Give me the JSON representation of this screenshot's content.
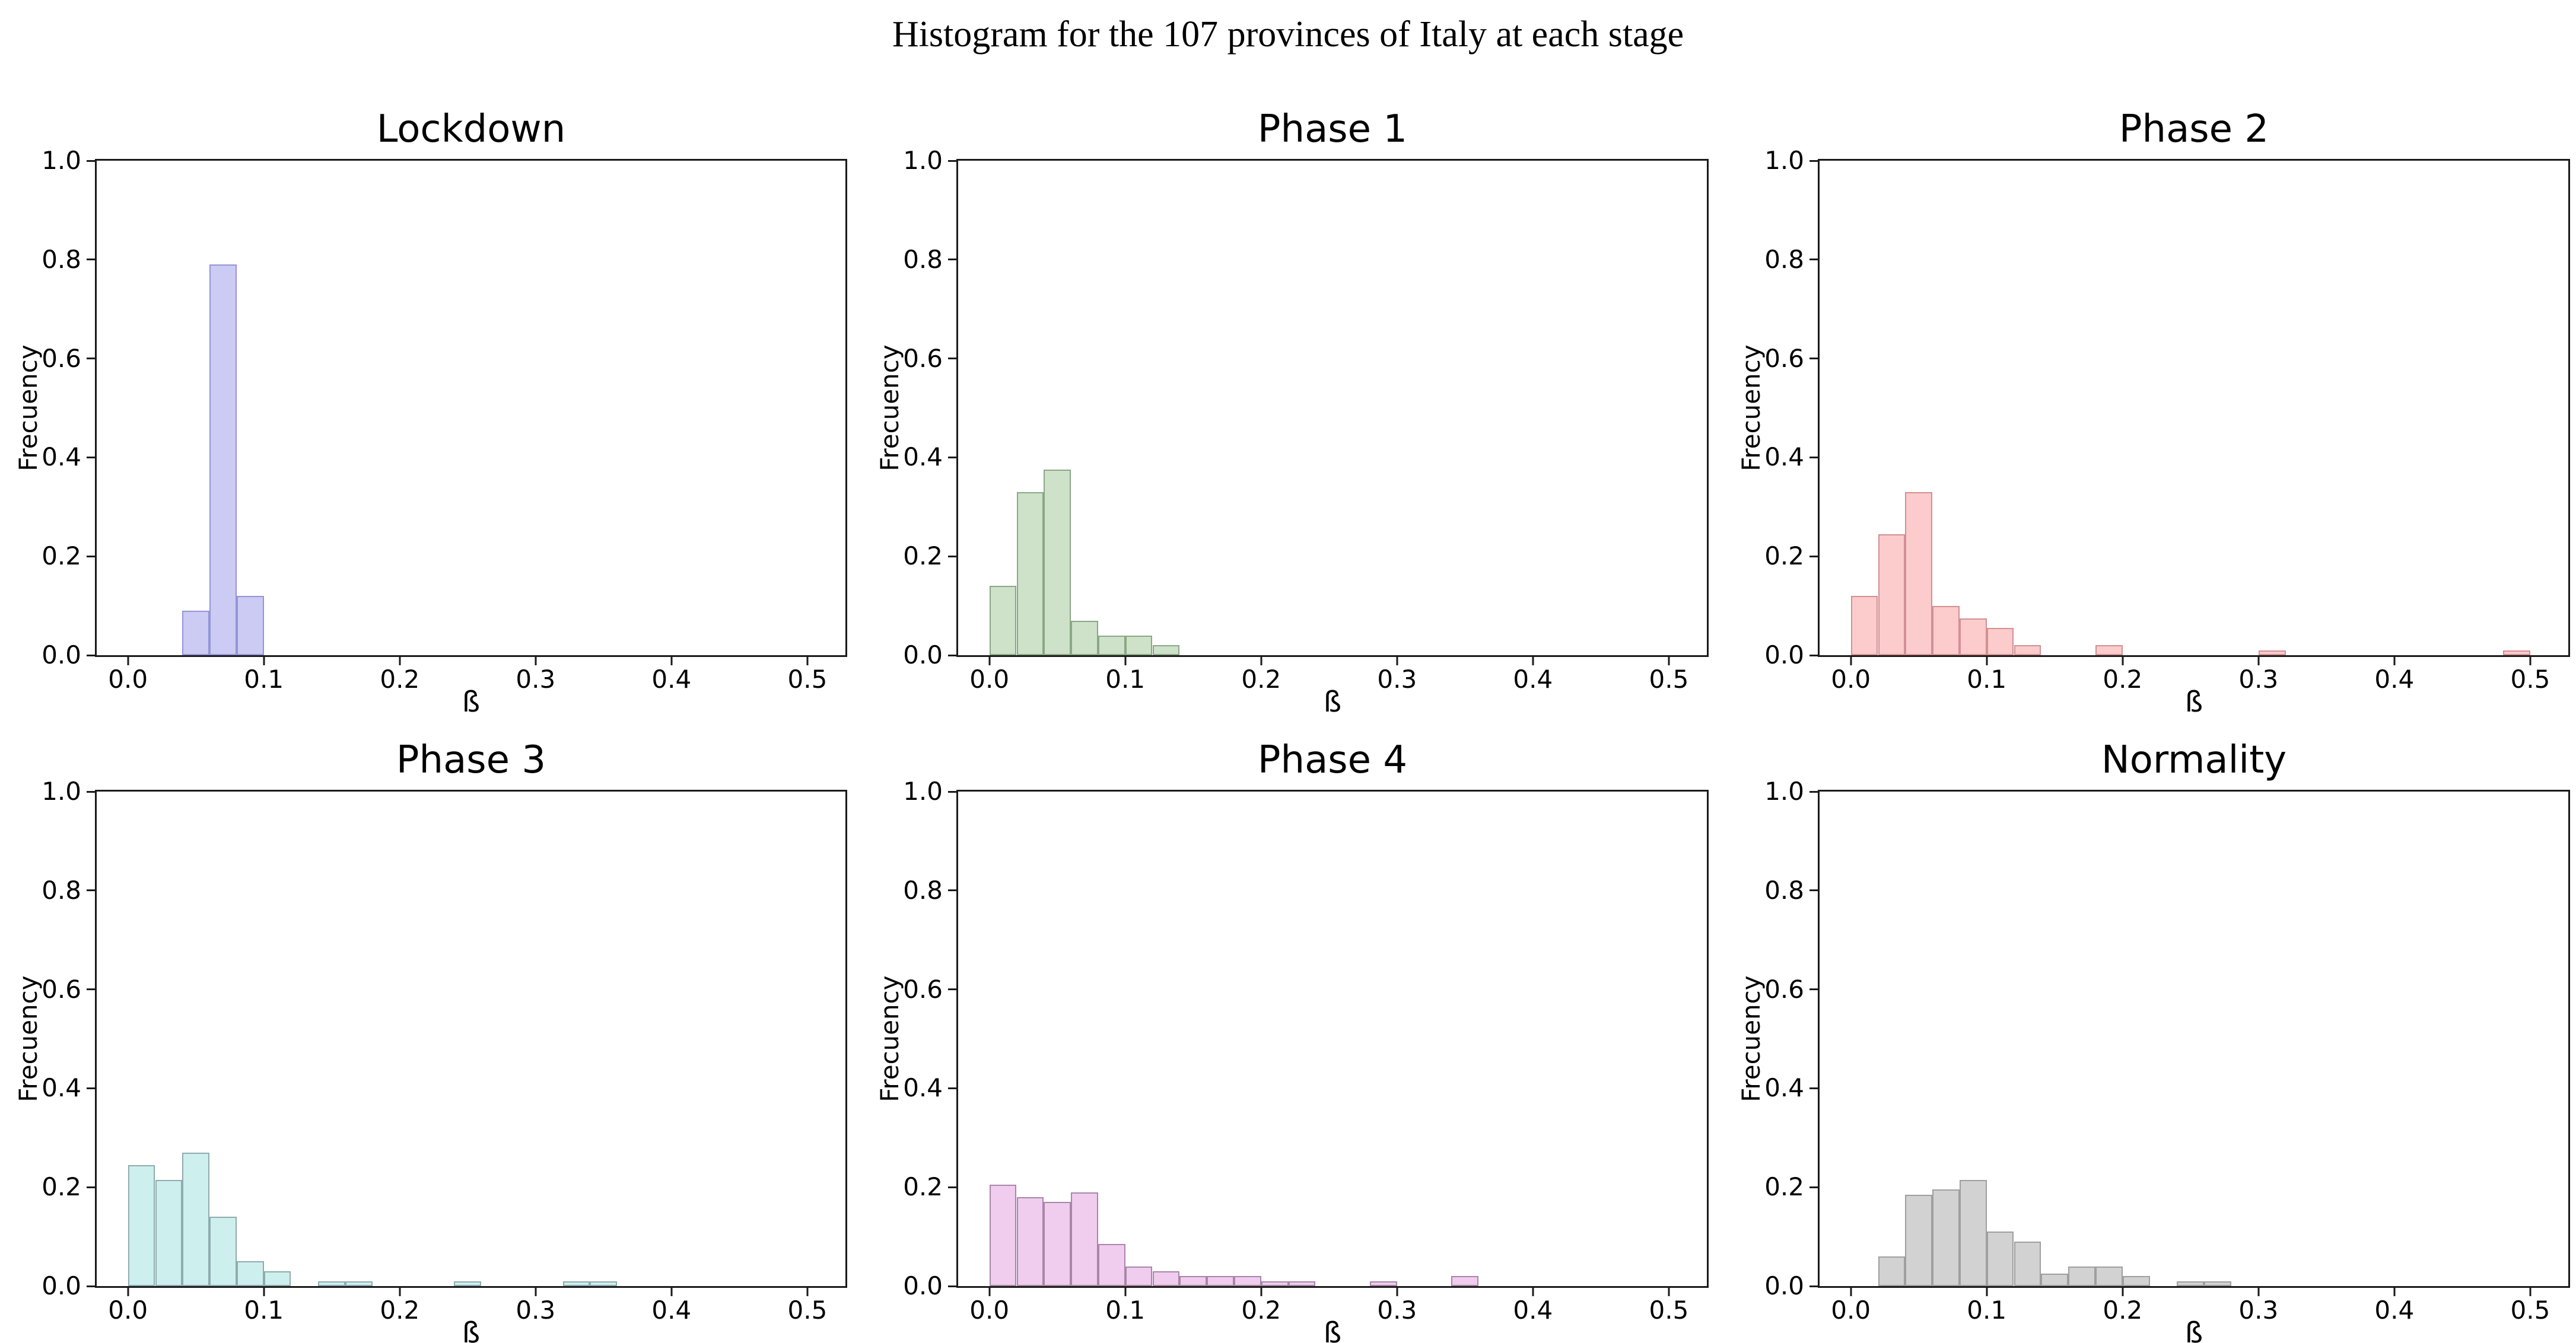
{
  "chart_data": {
    "type": "bar",
    "subtype": "histogram-grid",
    "figure_title": "Histogram for the 107 provinces of Italy at each stage",
    "xlabel": "ß",
    "ylabel": "Frecuency",
    "xlim": [
      -0.023,
      0.528
    ],
    "ylim": [
      0,
      1.0
    ],
    "x_tick_values": [
      0.0,
      0.1,
      0.2,
      0.3,
      0.4,
      0.5
    ],
    "x_tick_labels": [
      "0.0",
      "0.1",
      "0.2",
      "0.3",
      "0.4",
      "0.5"
    ],
    "y_tick_values": [
      0.0,
      0.2,
      0.4,
      0.6,
      0.8,
      1.0
    ],
    "y_tick_labels": [
      "0.0",
      "0.2",
      "0.4",
      "0.6",
      "0.8",
      "1.0"
    ],
    "bin_width": 0.02,
    "grid": "off",
    "legend": "none",
    "panels": [
      {
        "title": "Lockdown",
        "slug": "lockdown",
        "fill": "#cbcbf3",
        "edge": "#9494d8",
        "bars": [
          [
            0.04,
            0.09
          ],
          [
            0.06,
            0.79
          ],
          [
            0.08,
            0.12
          ]
        ]
      },
      {
        "title": "Phase 1",
        "slug": "phase-1",
        "fill": "#cde2c8",
        "edge": "#8aa786",
        "bars": [
          [
            0.0,
            0.14
          ],
          [
            0.02,
            0.33
          ],
          [
            0.04,
            0.375
          ],
          [
            0.06,
            0.07
          ],
          [
            0.08,
            0.04
          ],
          [
            0.1,
            0.04
          ],
          [
            0.12,
            0.02
          ]
        ]
      },
      {
        "title": "Phase 2",
        "slug": "phase-2",
        "fill": "#fccbcb",
        "edge": "#d19093",
        "bars": [
          [
            0.0,
            0.12
          ],
          [
            0.02,
            0.245
          ],
          [
            0.04,
            0.33
          ],
          [
            0.06,
            0.1
          ],
          [
            0.08,
            0.075
          ],
          [
            0.1,
            0.055
          ],
          [
            0.12,
            0.02
          ],
          [
            0.18,
            0.02
          ],
          [
            0.3,
            0.01
          ],
          [
            0.48,
            0.01
          ]
        ]
      },
      {
        "title": "Phase 3",
        "slug": "phase-3",
        "fill": "#cdf0ef",
        "edge": "#8fabad",
        "bars": [
          [
            0.0,
            0.245
          ],
          [
            0.02,
            0.215
          ],
          [
            0.04,
            0.27
          ],
          [
            0.06,
            0.14
          ],
          [
            0.08,
            0.05
          ],
          [
            0.1,
            0.03
          ],
          [
            0.14,
            0.01
          ],
          [
            0.16,
            0.01
          ],
          [
            0.24,
            0.01
          ],
          [
            0.32,
            0.01
          ],
          [
            0.34,
            0.01
          ]
        ]
      },
      {
        "title": "Phase 4",
        "slug": "phase-4",
        "fill": "#f0cdef",
        "edge": "#a886a8",
        "bars": [
          [
            0.0,
            0.205
          ],
          [
            0.02,
            0.18
          ],
          [
            0.04,
            0.17
          ],
          [
            0.06,
            0.19
          ],
          [
            0.08,
            0.085
          ],
          [
            0.1,
            0.04
          ],
          [
            0.12,
            0.03
          ],
          [
            0.14,
            0.02
          ],
          [
            0.16,
            0.02
          ],
          [
            0.18,
            0.02
          ],
          [
            0.2,
            0.01
          ],
          [
            0.22,
            0.01
          ],
          [
            0.28,
            0.01
          ],
          [
            0.34,
            0.02
          ]
        ]
      },
      {
        "title": "Normality",
        "slug": "normality",
        "fill": "#d2d2d2",
        "edge": "#9f9f9f",
        "bars": [
          [
            0.02,
            0.06
          ],
          [
            0.04,
            0.185
          ],
          [
            0.06,
            0.195
          ],
          [
            0.08,
            0.215
          ],
          [
            0.1,
            0.11
          ],
          [
            0.12,
            0.09
          ],
          [
            0.14,
            0.025
          ],
          [
            0.16,
            0.04
          ],
          [
            0.18,
            0.04
          ],
          [
            0.2,
            0.02
          ],
          [
            0.24,
            0.01
          ],
          [
            0.26,
            0.01
          ]
        ]
      }
    ]
  }
}
